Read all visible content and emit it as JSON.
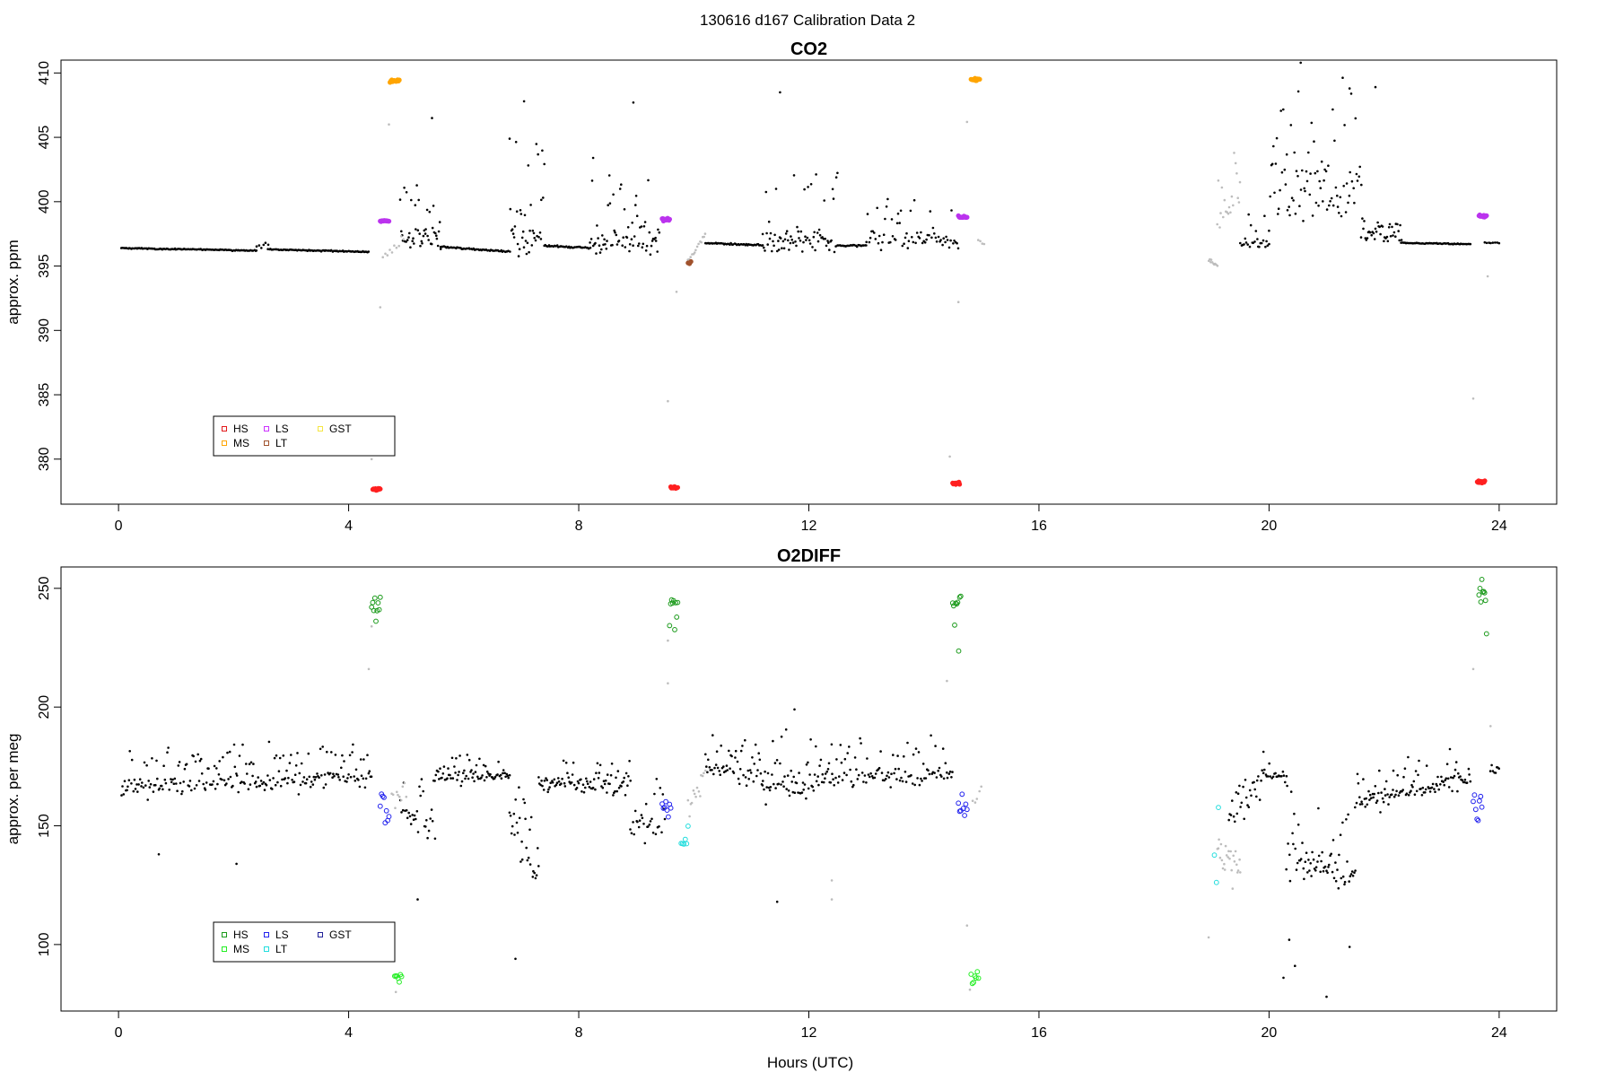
{
  "page_title": "130616   d167   Calibration Data 2",
  "xlabel": "Hours (UTC)",
  "chart_data": [
    {
      "type": "scatter",
      "title": "CO2",
      "ylabel": "approx. ppm",
      "xlim": [
        -1.0,
        25.0
      ],
      "ylim": [
        376.5,
        411.0
      ],
      "x_ticks": [
        0,
        4,
        8,
        12,
        16,
        20,
        24
      ],
      "y_ticks": [
        380,
        385,
        390,
        395,
        400,
        405,
        410
      ],
      "legend_position": "bottom-left",
      "legend": [
        {
          "label": "HS",
          "color": "#e31a1c"
        },
        {
          "label": "MS",
          "color": "#ffa500"
        },
        {
          "label": "LS",
          "color": "#cc33ff"
        },
        {
          "label": "LT",
          "color": "#a0522d"
        },
        {
          "label": "GST",
          "color": "#f5e642"
        }
      ],
      "segments": [
        {
          "color": "#000000",
          "x0": 0.05,
          "x1": 2.4,
          "y0": 396.4,
          "y1": 396.2,
          "noise": 0.05,
          "spikes": 0,
          "n": 120
        },
        {
          "color": "#000000",
          "x0": 2.4,
          "x1": 2.6,
          "y0": 396.5,
          "y1": 396.8,
          "noise": 0.3,
          "spikes": 0,
          "n": 6
        },
        {
          "color": "#000000",
          "x0": 2.6,
          "x1": 4.35,
          "y0": 396.3,
          "y1": 396.1,
          "noise": 0.05,
          "spikes": 0,
          "n": 90
        },
        {
          "color": "#000000",
          "x0": 4.9,
          "x1": 5.6,
          "y0": 397.0,
          "y1": 397.2,
          "noise": 1.5,
          "spikes": 4.5,
          "n": 45
        },
        {
          "color": "#000000",
          "x0": 5.6,
          "x1": 6.8,
          "y0": 396.5,
          "y1": 396.1,
          "noise": 0.08,
          "spikes": 0,
          "n": 60
        },
        {
          "color": "#000000",
          "x0": 6.8,
          "x1": 7.4,
          "y0": 397.5,
          "y1": 397.0,
          "noise": 1.6,
          "spikes": 7.5,
          "n": 40
        },
        {
          "color": "#000000",
          "x0": 7.4,
          "x1": 8.2,
          "y0": 396.6,
          "y1": 396.4,
          "noise": 0.1,
          "spikes": 0,
          "n": 40
        },
        {
          "color": "#000000",
          "x0": 8.2,
          "x1": 9.4,
          "y0": 396.8,
          "y1": 397.0,
          "noise": 1.4,
          "spikes": 5.5,
          "n": 70
        },
        {
          "color": "#000000",
          "x0": 10.2,
          "x1": 11.2,
          "y0": 396.8,
          "y1": 396.6,
          "noise": 0.08,
          "spikes": 0,
          "n": 50
        },
        {
          "color": "#000000",
          "x0": 11.2,
          "x1": 12.5,
          "y0": 396.8,
          "y1": 397.0,
          "noise": 1.2,
          "spikes": 5.5,
          "n": 75
        },
        {
          "color": "#000000",
          "x0": 12.5,
          "x1": 13.0,
          "y0": 396.6,
          "y1": 396.6,
          "noise": 0.08,
          "spikes": 0,
          "n": 25
        },
        {
          "color": "#000000",
          "x0": 13.0,
          "x1": 14.6,
          "y0": 397.2,
          "y1": 397.0,
          "noise": 0.9,
          "spikes": 2.5,
          "n": 70
        },
        {
          "color": "#000000",
          "x0": 19.5,
          "x1": 20.0,
          "y0": 396.8,
          "y1": 396.6,
          "noise": 0.4,
          "spikes": 2.5,
          "n": 25
        },
        {
          "color": "#000000",
          "x0": 20.0,
          "x1": 21.6,
          "y0": 400.5,
          "y1": 401.0,
          "noise": 3.0,
          "spikes": 6.5,
          "n": 85
        },
        {
          "color": "#000000",
          "x0": 21.6,
          "x1": 22.3,
          "y0": 397.5,
          "y1": 397.3,
          "noise": 0.8,
          "spikes": 1.5,
          "n": 40
        },
        {
          "color": "#000000",
          "x0": 22.3,
          "x1": 23.5,
          "y0": 396.8,
          "y1": 396.7,
          "noise": 0.05,
          "spikes": 0,
          "n": 60
        },
        {
          "color": "#000000",
          "x0": 23.75,
          "x1": 24.0,
          "y0": 396.8,
          "y1": 396.8,
          "noise": 0.05,
          "spikes": 0,
          "n": 8
        },
        {
          "color": "#bdbdbd",
          "x0": 4.6,
          "x1": 4.95,
          "y0": 395.5,
          "y1": 397.0,
          "noise": 0.6,
          "spikes": 0,
          "n": 10
        },
        {
          "color": "#bdbdbd",
          "x0": 9.9,
          "x1": 10.2,
          "y0": 395.5,
          "y1": 397.5,
          "noise": 0.4,
          "spikes": 0,
          "n": 14
        },
        {
          "color": "#bdbdbd",
          "x0": 18.95,
          "x1": 19.1,
          "y0": 395.5,
          "y1": 395.0,
          "noise": 0.2,
          "spikes": 0,
          "n": 10
        },
        {
          "color": "#bdbdbd",
          "x0": 19.1,
          "x1": 19.5,
          "y0": 398.5,
          "y1": 401.0,
          "noise": 1.5,
          "spikes": 3.5,
          "n": 20
        },
        {
          "color": "#bdbdbd",
          "x0": 14.95,
          "x1": 15.05,
          "y0": 397.0,
          "y1": 396.7,
          "noise": 0.1,
          "spikes": 0,
          "n": 4
        }
      ],
      "points": [
        {
          "color": "#bdbdbd",
          "x": 4.55,
          "y": 391.8
        },
        {
          "color": "#bdbdbd",
          "x": 4.7,
          "y": 406.0
        },
        {
          "color": "#bdbdbd",
          "x": 4.4,
          "y": 380.0
        },
        {
          "color": "#bdbdbd",
          "x": 9.55,
          "y": 384.5
        },
        {
          "color": "#bdbdbd",
          "x": 9.7,
          "y": 393.0
        },
        {
          "color": "#bdbdbd",
          "x": 14.45,
          "y": 380.2
        },
        {
          "color": "#bdbdbd",
          "x": 14.6,
          "y": 392.2
        },
        {
          "color": "#bdbdbd",
          "x": 14.75,
          "y": 406.2
        },
        {
          "color": "#bdbdbd",
          "x": 23.55,
          "y": 384.7
        },
        {
          "color": "#bdbdbd",
          "x": 23.8,
          "y": 394.2
        },
        {
          "color": "#000000",
          "x": 5.45,
          "y": 406.5
        },
        {
          "color": "#000000",
          "x": 7.05,
          "y": 407.8
        },
        {
          "color": "#000000",
          "x": 8.25,
          "y": 403.4
        },
        {
          "color": "#000000",
          "x": 8.95,
          "y": 407.7
        },
        {
          "color": "#000000",
          "x": 11.5,
          "y": 408.5
        },
        {
          "color": "#000000",
          "x": 20.55,
          "y": 410.8
        },
        {
          "color": "#000000",
          "x": 21.4,
          "y": 408.8
        },
        {
          "color": "#000000",
          "x": 21.85,
          "y": 408.9
        }
      ],
      "clusters": [
        {
          "label": "HS",
          "color": "#ff2020",
          "x0": 4.42,
          "x1": 4.55,
          "y": 377.7,
          "n": 12,
          "jitter": 0.05,
          "shape": "dot"
        },
        {
          "label": "HS",
          "color": "#ff2020",
          "x0": 9.6,
          "x1": 9.72,
          "y": 377.8,
          "n": 12,
          "jitter": 0.05,
          "shape": "dot"
        },
        {
          "label": "HS",
          "color": "#ff2020",
          "x0": 14.5,
          "x1": 14.62,
          "y": 378.1,
          "n": 12,
          "jitter": 0.05,
          "shape": "dot"
        },
        {
          "label": "HS",
          "color": "#ff2020",
          "x0": 23.62,
          "x1": 23.75,
          "y": 378.2,
          "n": 12,
          "jitter": 0.05,
          "shape": "dot"
        },
        {
          "label": "MS",
          "color": "#ffa500",
          "x0": 4.72,
          "x1": 4.88,
          "y": 409.4,
          "n": 12,
          "jitter": 0.05,
          "shape": "dot"
        },
        {
          "label": "MS",
          "color": "#ffa500",
          "x0": 14.82,
          "x1": 14.97,
          "y": 409.5,
          "n": 12,
          "jitter": 0.05,
          "shape": "dot"
        },
        {
          "label": "LS",
          "color": "#bb33ee",
          "x0": 4.55,
          "x1": 4.7,
          "y": 398.5,
          "n": 12,
          "jitter": 0.05,
          "shape": "dot"
        },
        {
          "label": "LS",
          "color": "#bb33ee",
          "x0": 9.45,
          "x1": 9.58,
          "y": 398.6,
          "n": 12,
          "jitter": 0.05,
          "shape": "dot"
        },
        {
          "label": "LS",
          "color": "#bb33ee",
          "x0": 14.6,
          "x1": 14.75,
          "y": 398.8,
          "n": 12,
          "jitter": 0.05,
          "shape": "dot"
        },
        {
          "label": "LS",
          "color": "#bb33ee",
          "x0": 23.65,
          "x1": 23.78,
          "y": 398.9,
          "n": 12,
          "jitter": 0.05,
          "shape": "dot"
        },
        {
          "label": "LT",
          "color": "#a0522d",
          "x0": 9.9,
          "x1": 9.95,
          "y": 395.2,
          "n": 3,
          "jitter": 0.1,
          "shape": "dot"
        }
      ]
    },
    {
      "type": "scatter",
      "title": "O2DIFF",
      "ylabel": "approx. per meg",
      "xlim": [
        -1.0,
        25.0
      ],
      "ylim": [
        72.0,
        259.0
      ],
      "x_ticks": [
        0,
        4,
        8,
        12,
        16,
        20,
        24
      ],
      "y_ticks": [
        100,
        150,
        200,
        250
      ],
      "legend_position": "bottom-left",
      "legend": [
        {
          "label": "HS",
          "color": "#1a9a1a"
        },
        {
          "label": "MS",
          "color": "#22ee22"
        },
        {
          "label": "LS",
          "color": "#2222ee"
        },
        {
          "label": "LT",
          "color": "#22dddd"
        },
        {
          "label": "GST",
          "color": "#222299"
        }
      ],
      "segments": [
        {
          "color": "#000000",
          "x0": 0.05,
          "x1": 4.4,
          "y0": 166.0,
          "y1": 170.0,
          "noise": 5.0,
          "spikes": 14.0,
          "n": 230
        },
        {
          "color": "#000000",
          "x0": 4.9,
          "x1": 5.5,
          "y0": 157.0,
          "y1": 148.0,
          "noise": 8.0,
          "spikes": 18.0,
          "n": 30
        },
        {
          "color": "#000000",
          "x0": 5.5,
          "x1": 6.8,
          "y0": 170.0,
          "y1": 171.0,
          "noise": 3.0,
          "spikes": 8.0,
          "n": 75
        },
        {
          "color": "#000000",
          "x0": 6.8,
          "x1": 7.3,
          "y0": 155.0,
          "y1": 125.0,
          "noise": 10.0,
          "spikes": 20.0,
          "n": 30
        },
        {
          "color": "#000000",
          "x0": 7.3,
          "x1": 8.9,
          "y0": 168.0,
          "y1": 166.0,
          "noise": 5.0,
          "spikes": 10.0,
          "n": 90
        },
        {
          "color": "#000000",
          "x0": 8.9,
          "x1": 9.5,
          "y0": 150.0,
          "y1": 150.0,
          "noise": 10.0,
          "spikes": 18.0,
          "n": 30
        },
        {
          "color": "#000000",
          "x0": 10.2,
          "x1": 11.2,
          "y0": 174.0,
          "y1": 170.0,
          "noise": 4.0,
          "spikes": 14.0,
          "n": 55
        },
        {
          "color": "#000000",
          "x0": 11.2,
          "x1": 12.4,
          "y0": 166.0,
          "y1": 168.0,
          "noise": 7.0,
          "spikes": 22.0,
          "n": 70
        },
        {
          "color": "#000000",
          "x0": 12.4,
          "x1": 14.5,
          "y0": 170.0,
          "y1": 172.0,
          "noise": 5.0,
          "spikes": 14.0,
          "n": 100
        },
        {
          "color": "#000000",
          "x0": 19.3,
          "x1": 19.9,
          "y0": 152.0,
          "y1": 170.0,
          "noise": 6.0,
          "spikes": 12.0,
          "n": 30
        },
        {
          "color": "#000000",
          "x0": 19.9,
          "x1": 20.3,
          "y0": 172.0,
          "y1": 170.0,
          "noise": 4.0,
          "spikes": 8.0,
          "n": 20
        },
        {
          "color": "#000000",
          "x0": 20.3,
          "x1": 21.5,
          "y0": 138.0,
          "y1": 128.0,
          "noise": 9.0,
          "spikes": 25.0,
          "n": 70
        },
        {
          "color": "#000000",
          "x0": 21.5,
          "x1": 23.5,
          "y0": 160.0,
          "y1": 170.0,
          "noise": 5.0,
          "spikes": 12.0,
          "n": 115
        },
        {
          "color": "#000000",
          "x0": 23.85,
          "x1": 24.0,
          "y0": 174.0,
          "y1": 174.0,
          "noise": 3.0,
          "spikes": 0,
          "n": 8
        },
        {
          "color": "#bdbdbd",
          "x0": 4.75,
          "x1": 5.0,
          "y0": 160.0,
          "y1": 165.0,
          "noise": 6.0,
          "spikes": 0,
          "n": 10
        },
        {
          "color": "#bdbdbd",
          "x0": 9.9,
          "x1": 10.2,
          "y0": 158.0,
          "y1": 172.0,
          "noise": 6.0,
          "spikes": 0,
          "n": 14
        },
        {
          "color": "#bdbdbd",
          "x0": 19.1,
          "x1": 19.5,
          "y0": 142.0,
          "y1": 130.0,
          "noise": 10.0,
          "spikes": 0,
          "n": 25
        },
        {
          "color": "#bdbdbd",
          "x0": 14.85,
          "x1": 15.0,
          "y0": 158.0,
          "y1": 165.0,
          "noise": 4.0,
          "spikes": 0,
          "n": 5
        }
      ],
      "points": [
        {
          "color": "#bdbdbd",
          "x": 4.35,
          "y": 216.0
        },
        {
          "color": "#bdbdbd",
          "x": 4.4,
          "y": 234.0
        },
        {
          "color": "#bdbdbd",
          "x": 4.75,
          "y": 99.0
        },
        {
          "color": "#bdbdbd",
          "x": 4.82,
          "y": 80.0
        },
        {
          "color": "#bdbdbd",
          "x": 9.55,
          "y": 228.0
        },
        {
          "color": "#bdbdbd",
          "x": 9.55,
          "y": 210.0
        },
        {
          "color": "#bdbdbd",
          "x": 14.4,
          "y": 211.0
        },
        {
          "color": "#bdbdbd",
          "x": 14.75,
          "y": 108.0
        },
        {
          "color": "#bdbdbd",
          "x": 14.8,
          "y": 81.0
        },
        {
          "color": "#bdbdbd",
          "x": 23.55,
          "y": 216.0
        },
        {
          "color": "#bdbdbd",
          "x": 23.85,
          "y": 192.0
        },
        {
          "color": "#bdbdbd",
          "x": 12.4,
          "y": 119.0
        },
        {
          "color": "#bdbdbd",
          "x": 12.4,
          "y": 127.0
        },
        {
          "color": "#bdbdbd",
          "x": 18.95,
          "y": 103.0
        },
        {
          "color": "#000000",
          "x": 6.9,
          "y": 94.0
        },
        {
          "color": "#000000",
          "x": 11.75,
          "y": 199.0
        },
        {
          "color": "#000000",
          "x": 21.0,
          "y": 78.0
        },
        {
          "color": "#000000",
          "x": 20.25,
          "y": 86.0
        },
        {
          "color": "#000000",
          "x": 20.35,
          "y": 102.0
        },
        {
          "color": "#000000",
          "x": 20.45,
          "y": 91.0
        },
        {
          "color": "#000000",
          "x": 21.4,
          "y": 99.0
        },
        {
          "color": "#000000",
          "x": 11.45,
          "y": 118.0
        },
        {
          "color": "#000000",
          "x": 5.2,
          "y": 119.0
        },
        {
          "color": "#000000",
          "x": 2.05,
          "y": 134.0
        },
        {
          "color": "#000000",
          "x": 0.7,
          "y": 138.0
        }
      ],
      "clusters": [
        {
          "label": "HS",
          "color": "#1a9a1a",
          "x0": 4.4,
          "x1": 4.55,
          "y": 243.0,
          "n": 9,
          "jitter": 2.5,
          "shape": "ring"
        },
        {
          "label": "HS",
          "color": "#1a9a1a",
          "x0": 9.58,
          "x1": 9.72,
          "y": 242.0,
          "n": 9,
          "jitter": 5.0,
          "shape": "ring"
        },
        {
          "label": "HS",
          "color": "#1a9a1a",
          "x0": 14.5,
          "x1": 14.64,
          "y": 244.0,
          "n": 9,
          "jitter": 7.0,
          "shape": "ring"
        },
        {
          "label": "HS",
          "color": "#1a9a1a",
          "x0": 23.65,
          "x1": 23.78,
          "y": 242.0,
          "n": 9,
          "jitter": 6.0,
          "shape": "ring"
        },
        {
          "label": "MS",
          "color": "#22ee22",
          "x0": 4.8,
          "x1": 4.92,
          "y": 86.0,
          "n": 7,
          "jitter": 1.5,
          "shape": "ring"
        },
        {
          "label": "MS",
          "color": "#22ee22",
          "x0": 14.82,
          "x1": 14.95,
          "y": 86.0,
          "n": 7,
          "jitter": 2.0,
          "shape": "ring"
        },
        {
          "label": "LS",
          "color": "#2222ee",
          "x0": 4.55,
          "x1": 4.7,
          "y": 158.0,
          "n": 8,
          "jitter": 4.0,
          "shape": "ring"
        },
        {
          "label": "LS",
          "color": "#2222ee",
          "x0": 9.45,
          "x1": 9.6,
          "y": 157.0,
          "n": 8,
          "jitter": 2.5,
          "shape": "ring"
        },
        {
          "label": "LS",
          "color": "#2222ee",
          "x0": 14.6,
          "x1": 14.75,
          "y": 156.0,
          "n": 8,
          "jitter": 4.5,
          "shape": "ring"
        },
        {
          "label": "LS",
          "color": "#2222ee",
          "x0": 23.55,
          "x1": 23.7,
          "y": 156.0,
          "n": 8,
          "jitter": 3.0,
          "shape": "ring"
        },
        {
          "label": "LT",
          "color": "#22dddd",
          "x0": 9.78,
          "x1": 9.9,
          "y": 141.0,
          "n": 6,
          "jitter": 3.0,
          "shape": "ring"
        },
        {
          "label": "LT",
          "color": "#22dddd",
          "x0": 19.05,
          "x1": 19.12,
          "y": 141.0,
          "n": 3,
          "jitter": 12.0,
          "shape": "ring"
        }
      ]
    }
  ]
}
